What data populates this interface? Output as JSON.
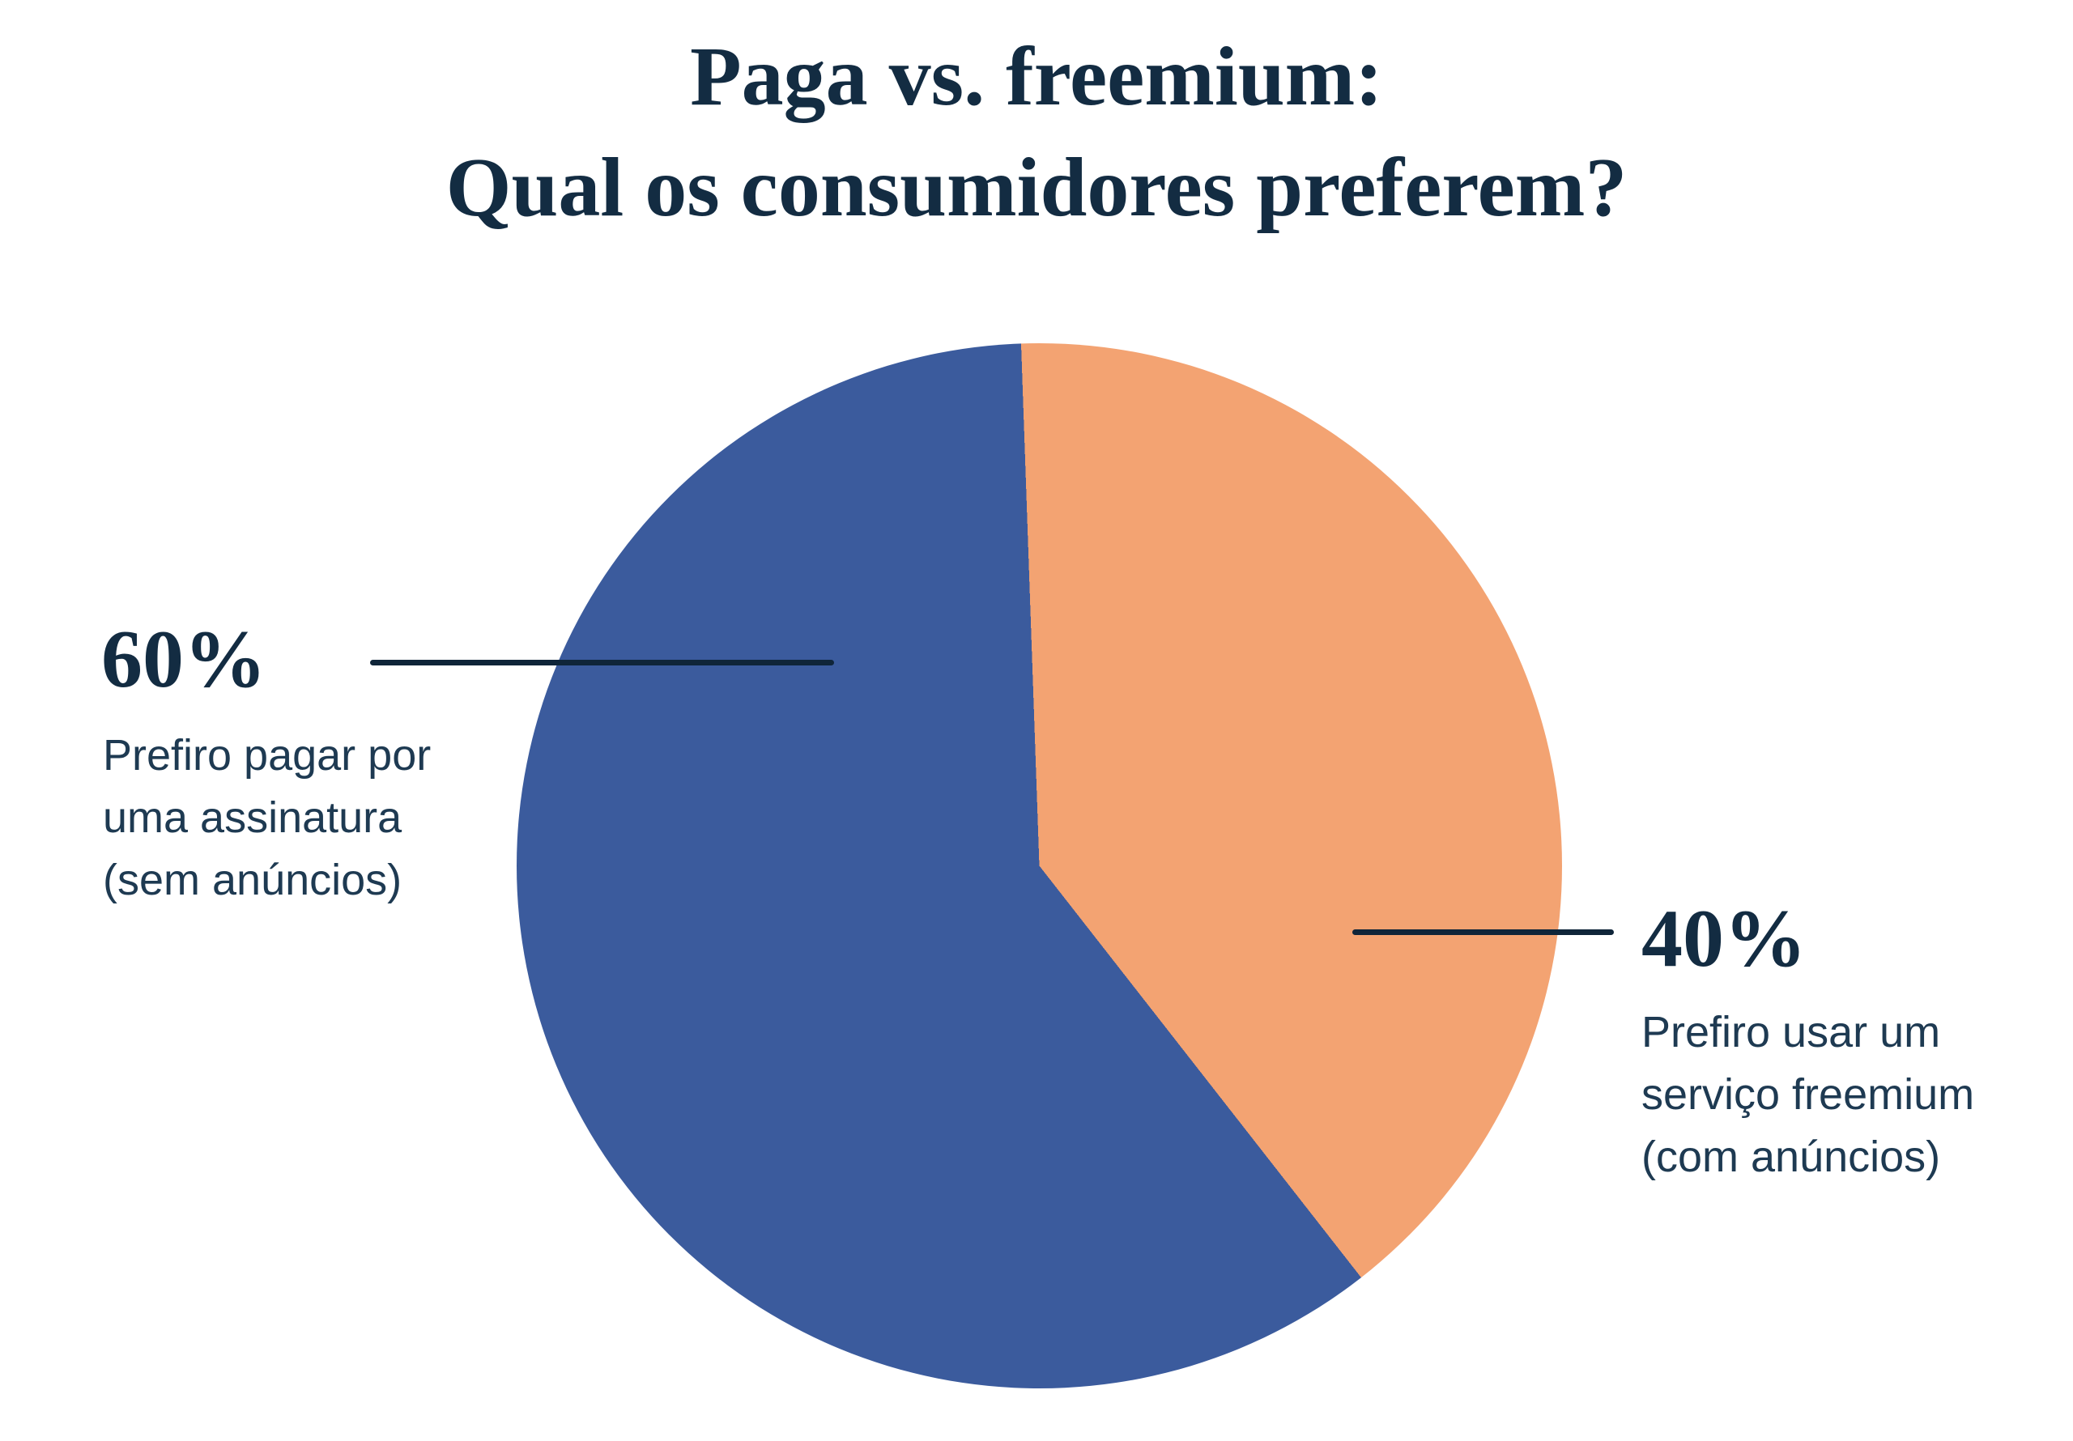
{
  "title": {
    "line1": "Paga vs. freemium:",
    "line2": "Qual os consumidores preferem?"
  },
  "chart_data": {
    "type": "pie",
    "title": "Paga vs. freemium: Qual os consumidores preferem?",
    "unit": "percent",
    "direction": "clockwise",
    "start_angle_deg": -2,
    "slice_draw_order": [
      1,
      0
    ],
    "slices": [
      {
        "label": "Prefiro pagar por uma assinatura (sem anúncios)",
        "value": 60,
        "display": "60%",
        "color": "#3b5b9d"
      },
      {
        "label": "Prefiro usar um serviço freemium (com anúncios)",
        "value": 40,
        "display": "40%",
        "color": "#f3a372"
      }
    ],
    "legend_position": "external-callouts"
  },
  "callouts": {
    "left": {
      "percent": "60%",
      "lines": [
        "Prefiro pagar por",
        "uma assinatura",
        "(sem anúncios)"
      ]
    },
    "right": {
      "percent": "40%",
      "lines": [
        "Prefiro usar um",
        "serviço freemium",
        "(com anúncios)"
      ]
    }
  },
  "colors": {
    "background": "#ffffff",
    "heading_text": "#132c42",
    "body_text": "#1e3a52",
    "leader_line": "#0f2539",
    "slice_blue": "#3b5b9d",
    "slice_orange": "#f3a372"
  }
}
